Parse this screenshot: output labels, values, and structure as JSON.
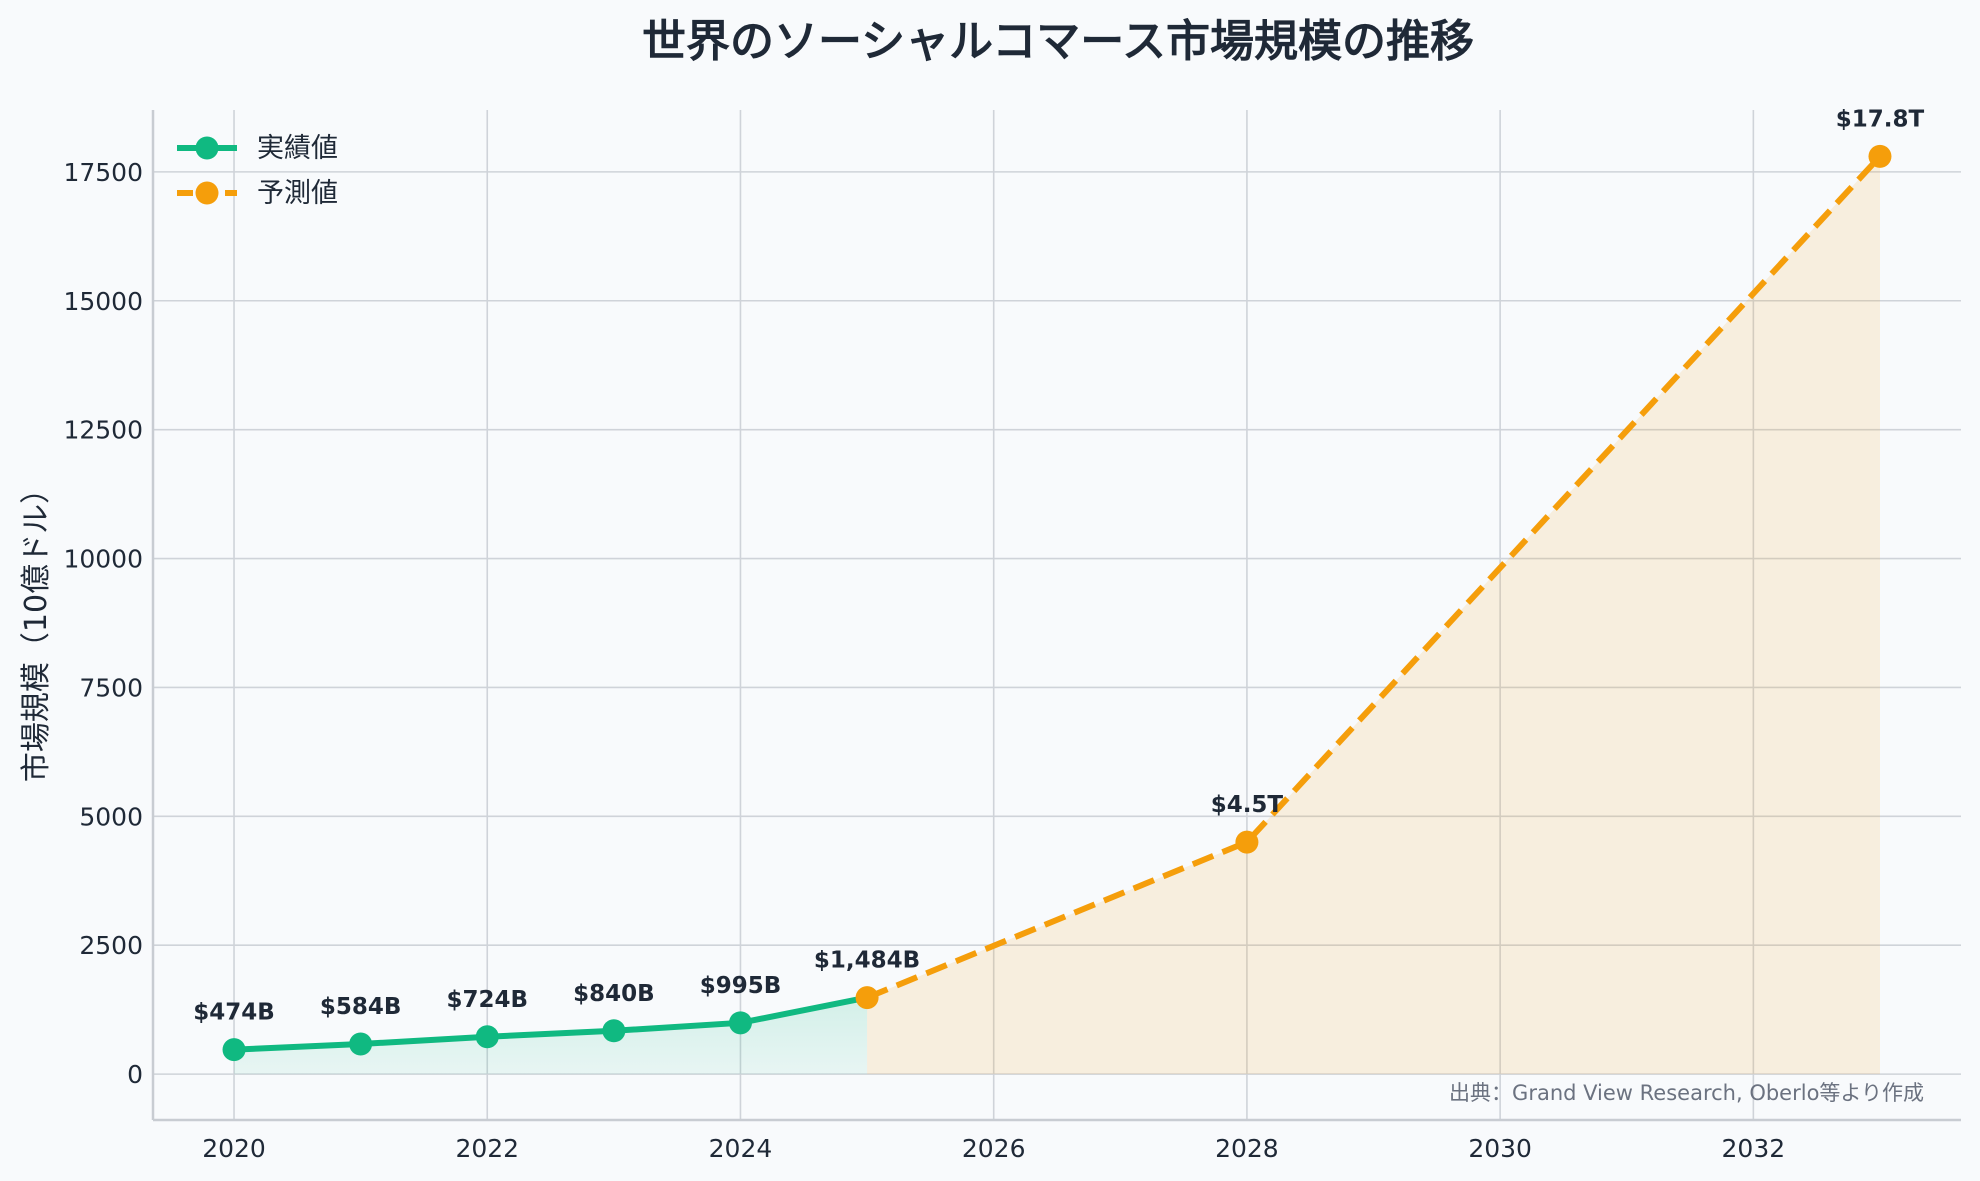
{
  "chart_data": {
    "type": "line",
    "title": "世界のソーシャルコマース市場規模の推移",
    "xlabel": "",
    "ylabel": "市場規模（10億ドル）",
    "xlim": [
      2019.36,
      2033.64
    ],
    "ylim": [
      -890,
      18700
    ],
    "xticks": [
      2020,
      2022,
      2024,
      2026,
      2028,
      2030,
      2032
    ],
    "yticks": [
      0,
      2500,
      5000,
      7500,
      10000,
      12500,
      15000,
      17500
    ],
    "grid": true,
    "legend_position": "top-left",
    "series": [
      {
        "name": "実績値",
        "color": "#10b981",
        "style": "solid",
        "x": [
          2020,
          2021,
          2022,
          2023,
          2024,
          2025
        ],
        "y": [
          474,
          584,
          724,
          840,
          995,
          1484
        ],
        "labels": [
          "$474B",
          "$584B",
          "$724B",
          "$840B",
          "$995B",
          ""
        ]
      },
      {
        "name": "予測値",
        "color": "#f59e0b",
        "style": "dashed",
        "x": [
          2025,
          2028,
          2033
        ],
        "y": [
          1484,
          4500,
          17800
        ],
        "labels": [
          "$1,484B",
          "$4.5T",
          "$17.8T"
        ]
      }
    ],
    "annotations": [
      {
        "text": "出典：Grand View Research, Oberlo等より作成",
        "position": "bottom-right"
      }
    ]
  }
}
